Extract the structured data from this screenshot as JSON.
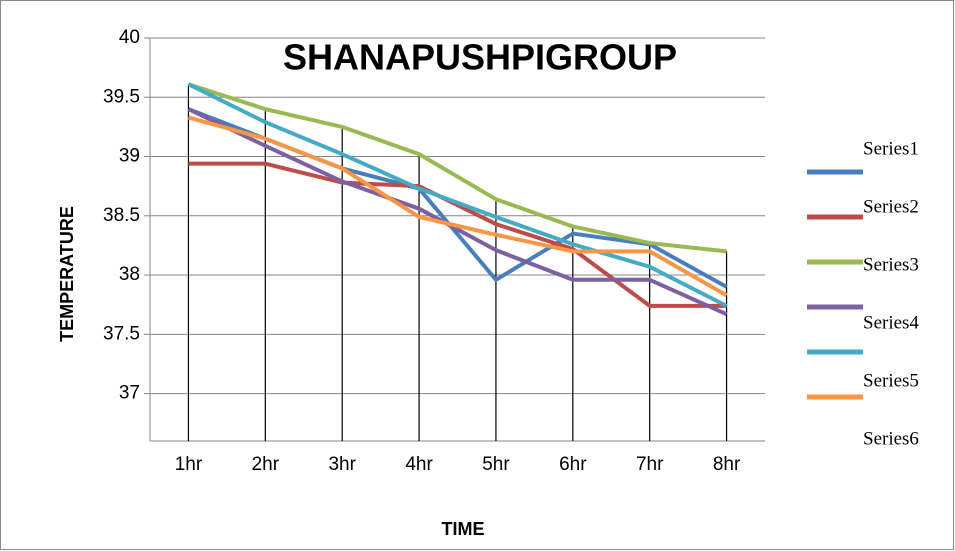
{
  "chart_data": {
    "type": "line",
    "title": "SHANAPUSHPIGROUP",
    "x_label": "TIME",
    "y_label": "TEMPERATURE",
    "categories": [
      "1hr",
      "2hr",
      "3hr",
      "4hr",
      "5hr",
      "6hr",
      "7hr",
      "8hr"
    ],
    "ylim": [
      36.6,
      40
    ],
    "yticks": [
      37,
      37.5,
      38,
      38.5,
      39,
      39.5,
      40
    ],
    "grid": true,
    "series": [
      {
        "name": "Series1",
        "color": "#4a7ebb",
        "values": [
          39.4,
          39.15,
          38.9,
          38.73,
          37.96,
          38.35,
          38.26,
          37.9
        ]
      },
      {
        "name": "Series2",
        "color": "#be4b48",
        "values": [
          38.94,
          38.94,
          38.78,
          38.75,
          38.43,
          38.22,
          37.74,
          37.74
        ]
      },
      {
        "name": "Series3",
        "color": "#98b954",
        "values": [
          39.61,
          39.4,
          39.25,
          39.02,
          38.64,
          38.41,
          38.27,
          38.2
        ]
      },
      {
        "name": "Series4",
        "color": "#7d60a0",
        "values": [
          39.4,
          39.09,
          38.79,
          38.56,
          38.21,
          37.96,
          37.96,
          37.67
        ]
      },
      {
        "name": "Series5",
        "color": "#46aac5",
        "values": [
          39.61,
          39.29,
          39.02,
          38.73,
          38.49,
          38.26,
          38.07,
          37.74
        ]
      },
      {
        "name": "Series6",
        "color": "#f79646",
        "values": [
          39.33,
          39.15,
          38.9,
          38.49,
          38.34,
          38.2,
          38.2,
          37.83
        ]
      }
    ]
  }
}
